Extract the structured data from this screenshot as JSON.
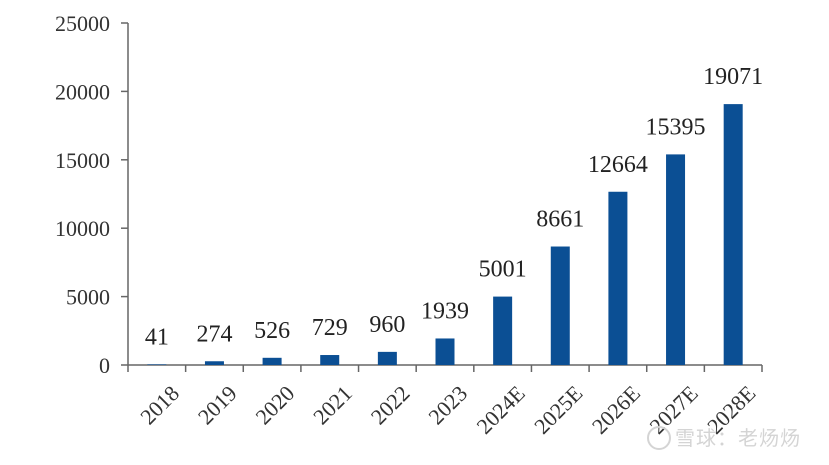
{
  "chart_data": {
    "type": "bar",
    "categories": [
      "2018",
      "2019",
      "2020",
      "2021",
      "2022",
      "2023",
      "2024E",
      "2025E",
      "2026E",
      "2027E",
      "2028E"
    ],
    "values": [
      41,
      274,
      526,
      729,
      960,
      1939,
      5001,
      8661,
      12664,
      15395,
      19071
    ],
    "data_labels": [
      "41",
      "274",
      "526",
      "729",
      "960",
      "1939",
      "5001",
      "8661",
      "12664",
      "15395",
      "19071"
    ],
    "title": "",
    "xlabel": "",
    "ylabel": "",
    "ylim": [
      0,
      25000
    ],
    "yticks": [
      0,
      5000,
      10000,
      15000,
      20000,
      25000
    ],
    "grid": false,
    "legend": "none",
    "bar_color": "#0b4f94"
  },
  "watermark": {
    "text": "雪球：老炀炀"
  }
}
